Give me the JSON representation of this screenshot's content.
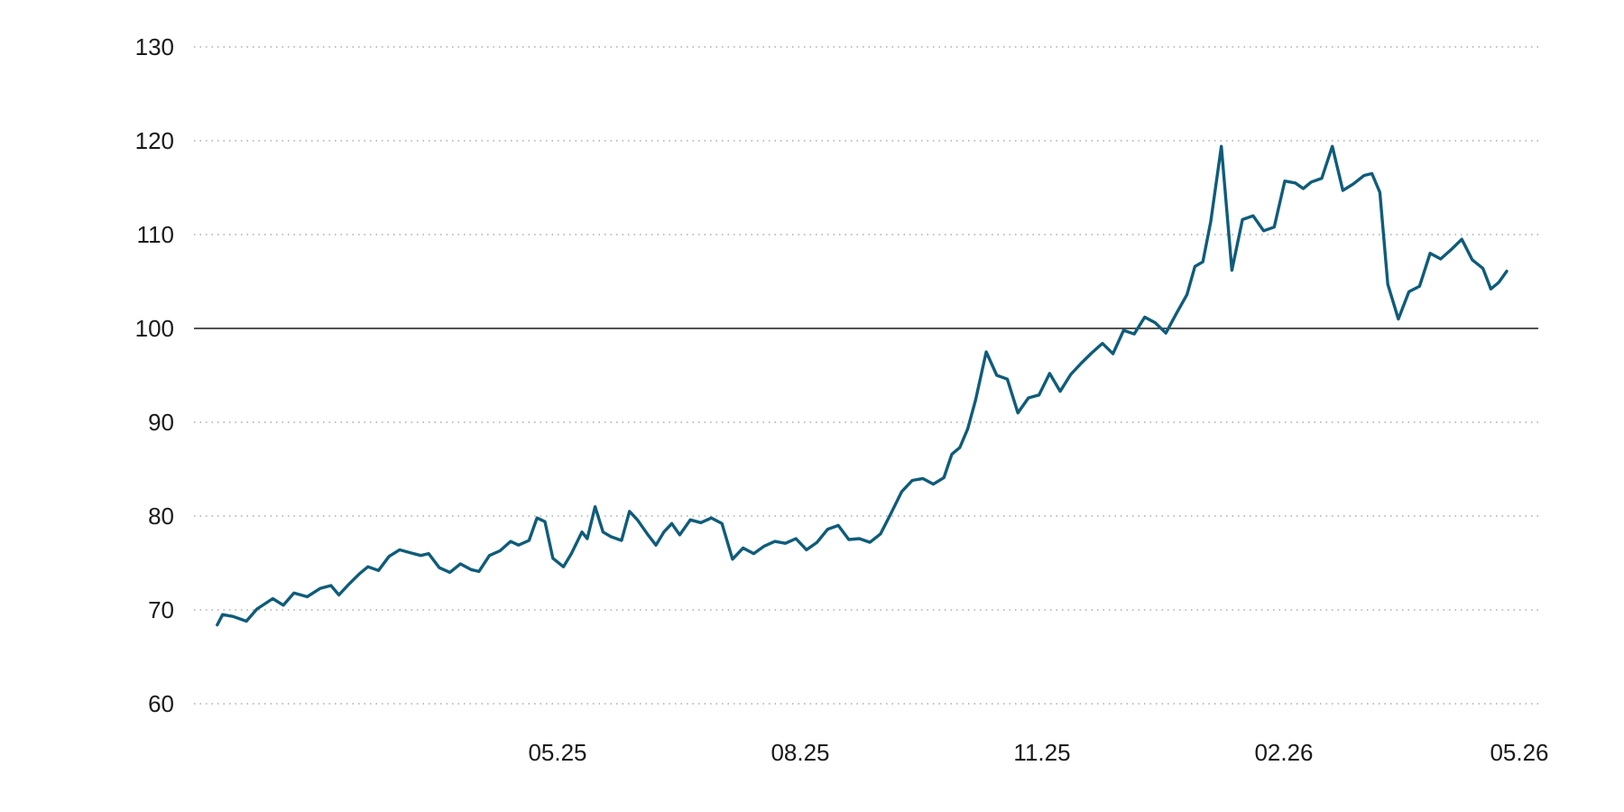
{
  "colors": {
    "series": "#0f5c7a",
    "reference": "#1a1a1a",
    "grid": "#9a9a9a"
  },
  "chart_data": {
    "type": "line",
    "title": "",
    "xlabel": "",
    "ylabel": "",
    "ylim": [
      60,
      130
    ],
    "xlim": [
      "2025-01-15",
      "2026-05-31"
    ],
    "y_ticks": [
      60,
      70,
      80,
      90,
      100,
      110,
      120,
      130
    ],
    "y_tick_labels": [
      "60",
      "70",
      "80",
      "90",
      "100",
      "110",
      "120",
      "130"
    ],
    "x_ticks": [
      "2025-05-31",
      "2025-08-31",
      "2025-11-30",
      "2026-02-28",
      "2026-05-31"
    ],
    "x_tick_labels": [
      "05.25",
      "08.25",
      "11.25",
      "02.26",
      "05.26"
    ],
    "reference_line": 100,
    "grid": true,
    "legend": "none",
    "series": [
      {
        "x": [
          "2025-01-22",
          "2025-01-24",
          "2025-01-28",
          "2025-02-02",
          "2025-02-06",
          "2025-02-12",
          "2025-02-16",
          "2025-02-20",
          "2025-02-25",
          "2025-03-02",
          "2025-03-06",
          "2025-03-09",
          "2025-03-13",
          "2025-03-17",
          "2025-03-20",
          "2025-03-24",
          "2025-03-28",
          "2025-04-01",
          "2025-04-05",
          "2025-04-09",
          "2025-04-12",
          "2025-04-16",
          "2025-04-20",
          "2025-04-24",
          "2025-04-28",
          "2025-05-01",
          "2025-05-05",
          "2025-05-09",
          "2025-05-13",
          "2025-05-16",
          "2025-05-20",
          "2025-05-23",
          "2025-05-26",
          "2025-05-29",
          "2025-06-02",
          "2025-06-05",
          "2025-06-09",
          "2025-06-11",
          "2025-06-14",
          "2025-06-17",
          "2025-06-20",
          "2025-06-24",
          "2025-06-27",
          "2025-06-30",
          "2025-07-04",
          "2025-07-07",
          "2025-07-10",
          "2025-07-13",
          "2025-07-16",
          "2025-07-20",
          "2025-07-24",
          "2025-07-28",
          "2025-08-01",
          "2025-08-05",
          "2025-08-09",
          "2025-08-13",
          "2025-08-17",
          "2025-08-21",
          "2025-08-25",
          "2025-08-29",
          "2025-09-02",
          "2025-09-06",
          "2025-09-10",
          "2025-09-14",
          "2025-09-18",
          "2025-09-22",
          "2025-09-26",
          "2025-09-30",
          "2025-10-04",
          "2025-10-08",
          "2025-10-12",
          "2025-10-16",
          "2025-10-20",
          "2025-10-24",
          "2025-10-27",
          "2025-10-30",
          "2025-11-02",
          "2025-11-05",
          "2025-11-09",
          "2025-11-13",
          "2025-11-17",
          "2025-11-21",
          "2025-11-25",
          "2025-11-29",
          "2025-12-03",
          "2025-12-07",
          "2025-12-11",
          "2025-12-15",
          "2025-12-19",
          "2025-12-23",
          "2025-12-27",
          "2025-12-31",
          "2026-01-04",
          "2026-01-08",
          "2026-01-12",
          "2026-01-16",
          "2026-01-20",
          "2026-01-24",
          "2026-01-27",
          "2026-01-30",
          "2026-02-02",
          "2026-02-06",
          "2026-02-10",
          "2026-02-14",
          "2026-02-18",
          "2026-02-22",
          "2026-02-26",
          "2026-03-02",
          "2026-03-06",
          "2026-03-09",
          "2026-03-12",
          "2026-03-16",
          "2026-03-20",
          "2026-03-24",
          "2026-03-28",
          "2026-04-01",
          "2026-04-04",
          "2026-04-07",
          "2026-04-10",
          "2026-04-14",
          "2026-04-18",
          "2026-04-22",
          "2026-04-26",
          "2026-04-30",
          "2026-05-04",
          "2026-05-08",
          "2026-05-12",
          "2026-05-16",
          "2026-05-19",
          "2026-05-22",
          "2026-05-25"
        ],
        "y": [
          68.4,
          69.5,
          69.3,
          68.8,
          70.1,
          71.2,
          70.5,
          71.8,
          71.4,
          72.3,
          72.6,
          71.6,
          72.8,
          73.9,
          74.6,
          74.2,
          75.7,
          76.4,
          76.1,
          75.8,
          76.0,
          74.5,
          74.0,
          74.9,
          74.3,
          74.1,
          75.8,
          76.3,
          77.3,
          76.9,
          77.4,
          79.8,
          79.4,
          75.5,
          74.6,
          76.0,
          78.3,
          77.6,
          81.0,
          78.3,
          77.8,
          77.4,
          80.5,
          79.6,
          78.0,
          76.9,
          78.3,
          79.2,
          78.0,
          79.6,
          79.3,
          79.8,
          79.2,
          75.4,
          76.6,
          76.0,
          76.8,
          77.3,
          77.1,
          77.6,
          76.4,
          77.2,
          78.6,
          79.0,
          77.5,
          77.6,
          77.2,
          78.1,
          80.3,
          82.6,
          83.8,
          84.0,
          83.4,
          84.1,
          86.6,
          87.3,
          89.3,
          92.4,
          97.5,
          95.0,
          94.6,
          91.0,
          92.6,
          92.9,
          95.2,
          93.3,
          95.1,
          96.3,
          97.4,
          98.4,
          97.3,
          99.8,
          99.4,
          101.2,
          100.6,
          99.5,
          101.6,
          103.6,
          106.6,
          107.1,
          111.4,
          119.4,
          106.2,
          111.6,
          112.0,
          110.4,
          110.8,
          115.7,
          115.5,
          114.9,
          115.6,
          116.0,
          119.4,
          114.7,
          115.4,
          116.3,
          116.5,
          114.5,
          104.7,
          101.0,
          103.9,
          104.5,
          108.0,
          107.4,
          108.4,
          109.5,
          107.3,
          106.4,
          104.2,
          104.9,
          106.1
        ]
      }
    ]
  }
}
